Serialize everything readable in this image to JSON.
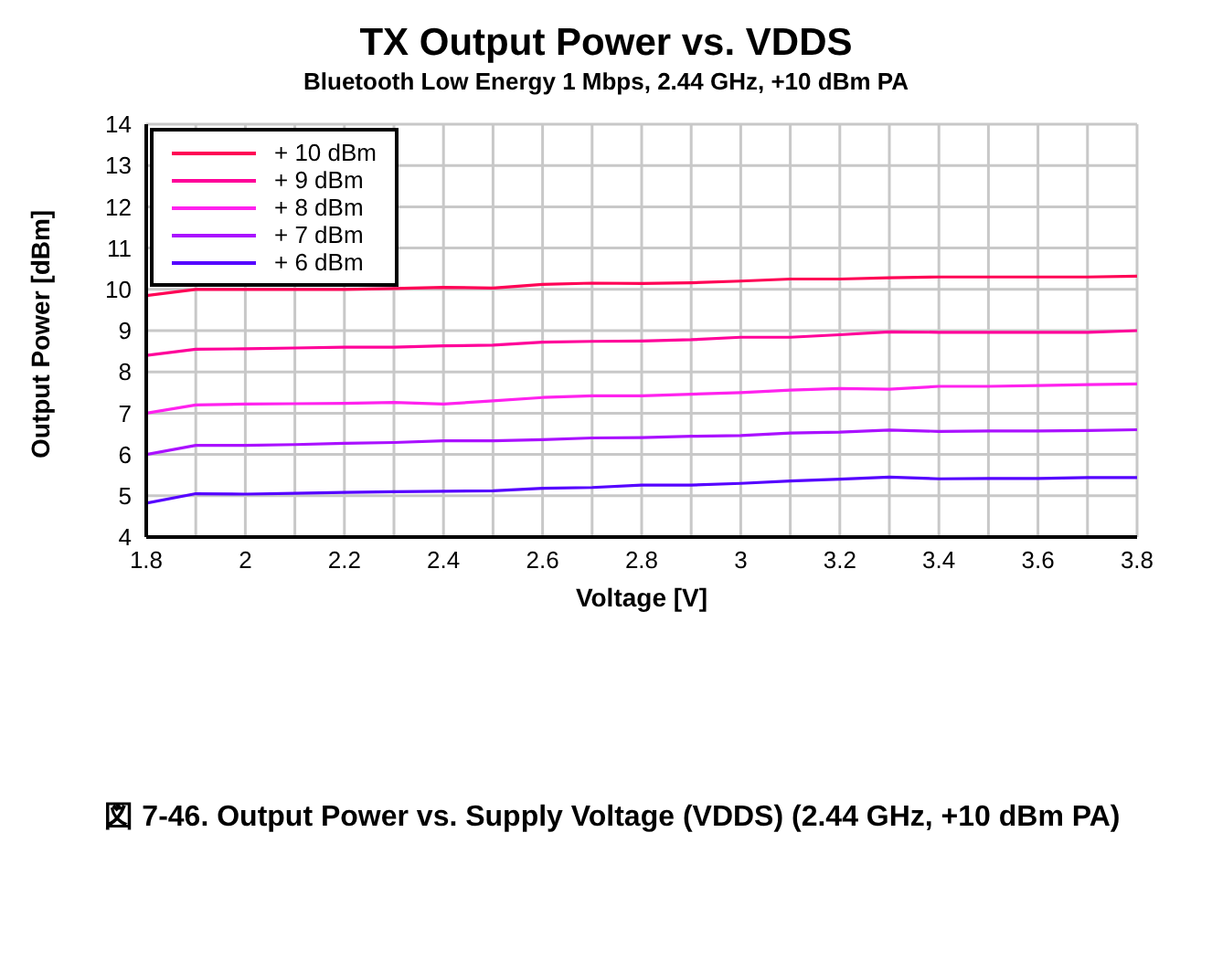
{
  "chart_data": {
    "type": "line",
    "title": "TX Output Power vs. VDDS",
    "subtitle": "Bluetooth Low Energy 1 Mbps, 2.44 GHz, +10 dBm PA",
    "xlabel": "Voltage [V]",
    "ylabel": "Output Power [dBm]",
    "annotations": [
      "図 7-46. Output Power vs. Supply Voltage (VDDS) (2.44 GHz, +10 dBm PA)"
    ],
    "x": [
      1.8,
      1.9,
      2.0,
      2.1,
      2.2,
      2.3,
      2.4,
      2.5,
      2.6,
      2.7,
      2.8,
      2.9,
      3.0,
      3.1,
      3.2,
      3.3,
      3.4,
      3.5,
      3.6,
      3.7,
      3.8
    ],
    "series": [
      {
        "name": "+ 10 dBm",
        "color": "#ff0055",
        "values": [
          9.85,
          10.0,
          10.0,
          10.0,
          10.0,
          10.02,
          10.05,
          10.03,
          10.12,
          10.15,
          10.14,
          10.16,
          10.2,
          10.25,
          10.25,
          10.28,
          10.3,
          10.3,
          10.3,
          10.3,
          10.32
        ]
      },
      {
        "name": "+ 9 dBm",
        "color": "#ff0099",
        "values": [
          8.4,
          8.55,
          8.56,
          8.58,
          8.6,
          8.6,
          8.63,
          8.65,
          8.72,
          8.74,
          8.75,
          8.78,
          8.84,
          8.84,
          8.9,
          8.97,
          8.96,
          8.96,
          8.96,
          8.96,
          9.0
        ]
      },
      {
        "name": "+ 8 dBm",
        "color": "#ff22ee",
        "values": [
          7.0,
          7.2,
          7.22,
          7.23,
          7.24,
          7.26,
          7.22,
          7.3,
          7.38,
          7.42,
          7.42,
          7.46,
          7.5,
          7.56,
          7.6,
          7.58,
          7.65,
          7.65,
          7.67,
          7.69,
          7.71
        ]
      },
      {
        "name": "+ 7 dBm",
        "color": "#aa11ff",
        "values": [
          6.0,
          6.22,
          6.22,
          6.24,
          6.27,
          6.29,
          6.33,
          6.33,
          6.36,
          6.4,
          6.41,
          6.44,
          6.46,
          6.52,
          6.54,
          6.59,
          6.56,
          6.57,
          6.57,
          6.58,
          6.6
        ]
      },
      {
        "name": "+ 6 dBm",
        "color": "#5500ff",
        "values": [
          4.82,
          5.05,
          5.04,
          5.06,
          5.08,
          5.1,
          5.11,
          5.12,
          5.18,
          5.2,
          5.26,
          5.26,
          5.3,
          5.36,
          5.4,
          5.45,
          5.41,
          5.42,
          5.42,
          5.44,
          5.44
        ]
      }
    ],
    "xlim": [
      1.8,
      3.8
    ],
    "xticks": [
      1.8,
      {
        "value": 1.9,
        "label": null
      },
      2,
      {
        "value": 2.1,
        "label": null
      },
      2.2,
      {
        "value": 2.3,
        "label": null
      },
      2.4,
      {
        "value": 2.5,
        "label": null
      },
      2.6,
      {
        "value": 2.7,
        "label": null
      },
      2.8,
      {
        "value": 2.9,
        "label": null
      },
      3,
      {
        "value": 3.1,
        "label": null
      },
      3.2,
      {
        "value": 3.3,
        "label": null
      },
      3.4,
      {
        "value": 3.5,
        "label": null
      },
      3.6,
      {
        "value": 3.7,
        "label": null
      },
      3.8
    ],
    "ylim": [
      4,
      14
    ],
    "yticks": [
      4,
      5,
      6,
      7,
      8,
      9,
      10,
      11,
      12,
      13,
      14
    ],
    "grid": true,
    "legend": "top left",
    "marker": "none",
    "line_style": "solid"
  }
}
